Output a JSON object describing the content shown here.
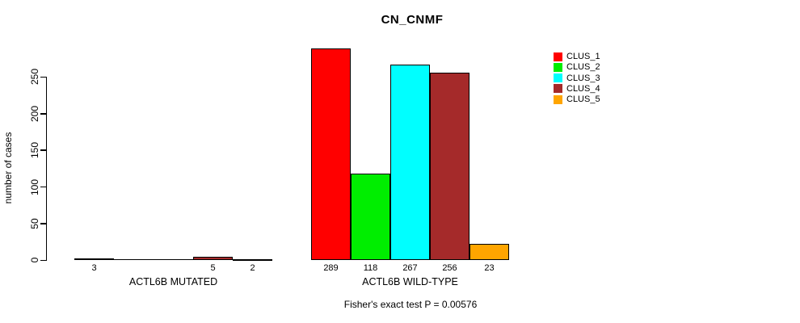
{
  "chart_data": {
    "type": "bar",
    "title": "CN_CNMF",
    "xlabel": "",
    "ylabel": "number of cases",
    "ylim": [
      0,
      250
    ],
    "yticks": [
      0,
      50,
      100,
      150,
      200,
      250
    ],
    "grid": false,
    "legend_position": "right",
    "bar_border_color": "#000000",
    "categories": [
      "ACTL6B MUTATED",
      "ACTL6B WILD-TYPE"
    ],
    "series": [
      {
        "name": "CLUS_1",
        "color": "#FF0000",
        "values": [
          3,
          289
        ]
      },
      {
        "name": "CLUS_2",
        "color": "#00EE00",
        "values": [
          0,
          118
        ]
      },
      {
        "name": "CLUS_3",
        "color": "#00FFFF",
        "values": [
          0,
          267
        ]
      },
      {
        "name": "CLUS_4",
        "color": "#A52A2A",
        "values": [
          5,
          256
        ]
      },
      {
        "name": "CLUS_5",
        "color": "#FFA500",
        "values": [
          2,
          23
        ]
      }
    ],
    "bar_value_labels": [
      [
        "3",
        "",
        "",
        "5",
        "2"
      ],
      [
        "289",
        "118",
        "267",
        "256",
        "23"
      ]
    ],
    "annotation": "Fisher's exact test P = 0.00576"
  }
}
